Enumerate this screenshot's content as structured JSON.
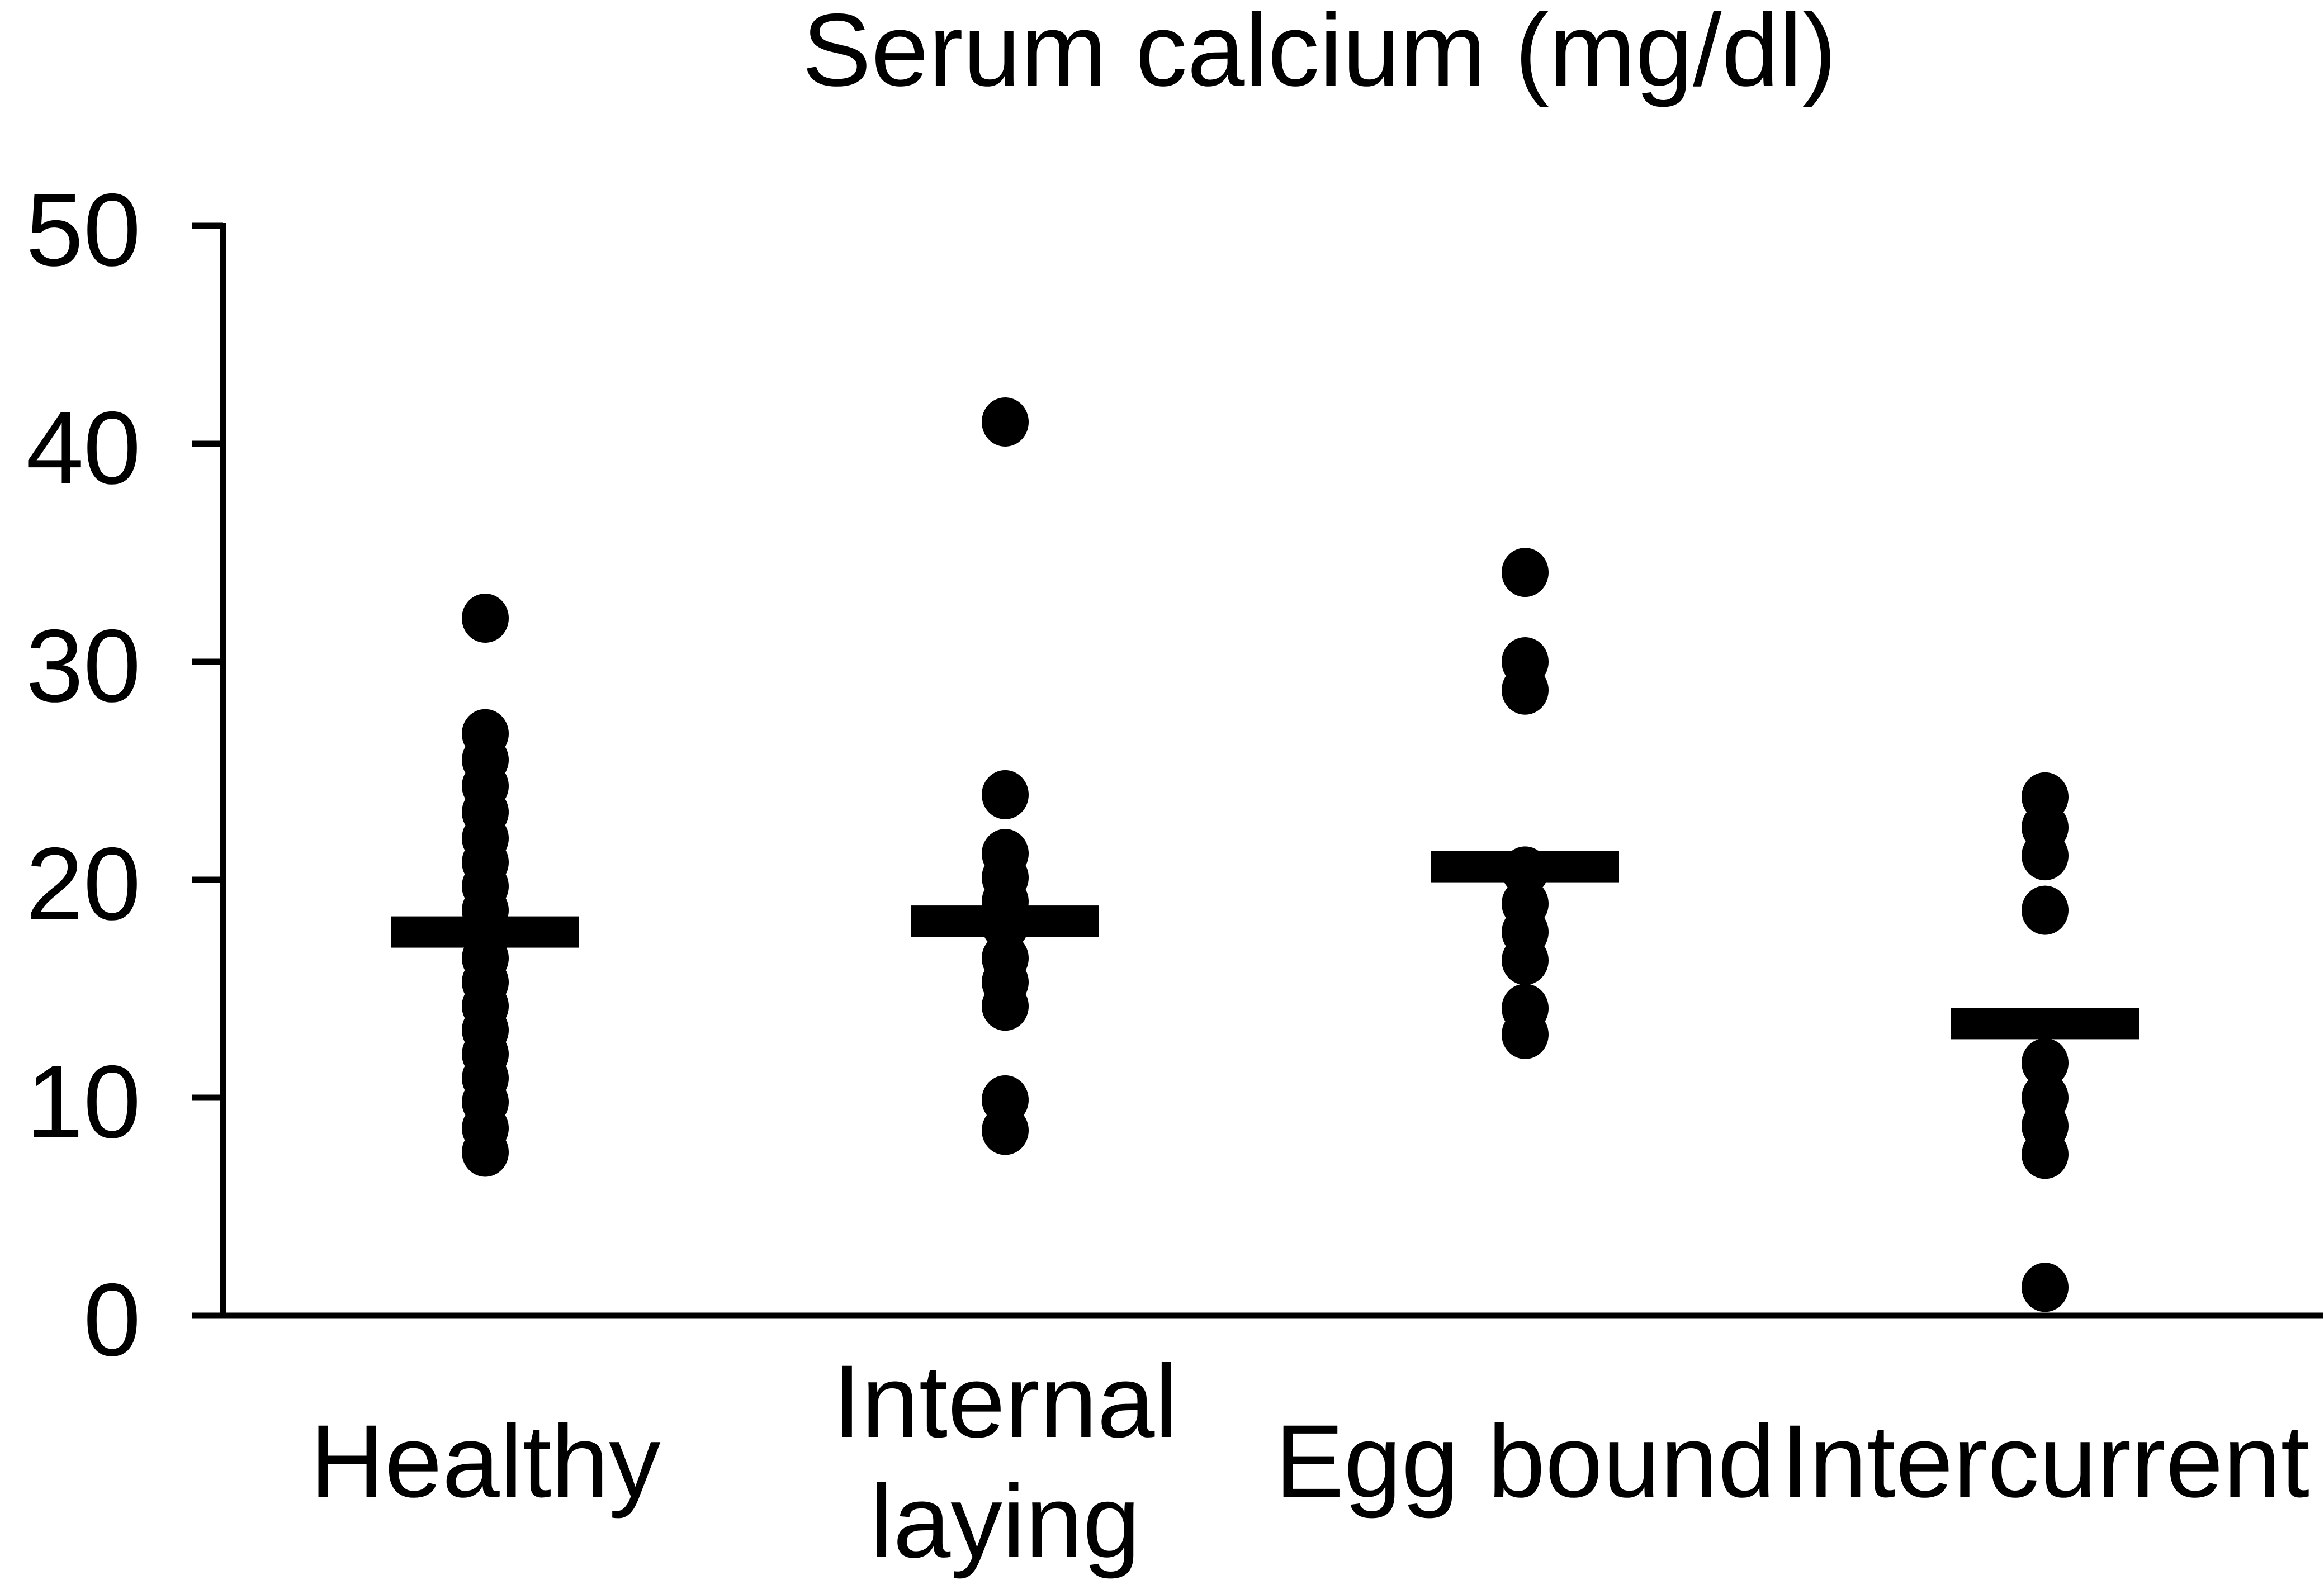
{
  "chart_data": {
    "type": "scatter",
    "subtype": "dot-plot-with-mean-bars",
    "title": "Serum calcium (mg/dl)",
    "xlabel": "",
    "ylabel": "",
    "ylim": [
      0,
      50
    ],
    "yticks": [
      0,
      10,
      20,
      30,
      40,
      50
    ],
    "ytick_labels": [
      "0",
      "10",
      "20",
      "30",
      "40",
      "50"
    ],
    "grid": false,
    "legend": "none",
    "marker_color": "#000000",
    "mean_bar_color": "#000000",
    "axis_color": "#000000",
    "background_color": "#ffffff",
    "categories": [
      "Healthy",
      "Internal laying",
      "Egg bound",
      "Intercurrent"
    ],
    "groups": [
      {
        "label": "Healthy",
        "label_lines": [
          "Healthy"
        ],
        "mean": 17.6,
        "values": [
          32.0,
          26.7,
          25.5,
          24.3,
          23.1,
          21.9,
          20.8,
          19.7,
          18.6,
          17.5,
          16.4,
          15.3,
          14.2,
          13.1,
          12.0,
          10.9,
          9.8,
          8.6,
          7.5
        ]
      },
      {
        "label": "Internal laying",
        "label_lines": [
          "Internal",
          "laying"
        ],
        "mean": 18.1,
        "values": [
          41.0,
          23.9,
          21.2,
          20.1,
          19.0,
          17.9,
          16.4,
          15.3,
          14.2,
          9.9,
          8.5
        ]
      },
      {
        "label": "Egg bound",
        "label_lines": [
          "Egg bound"
        ],
        "mean": 20.6,
        "values": [
          34.1,
          30.0,
          28.7,
          20.4,
          18.9,
          17.6,
          16.3,
          14.1,
          12.9
        ]
      },
      {
        "label": "Intercurrent",
        "label_lines": [
          "Intercurrent"
        ],
        "mean": 13.4,
        "values": [
          23.8,
          22.4,
          21.1,
          18.6,
          11.6,
          10.0,
          8.7,
          7.4,
          1.3
        ]
      }
    ]
  }
}
